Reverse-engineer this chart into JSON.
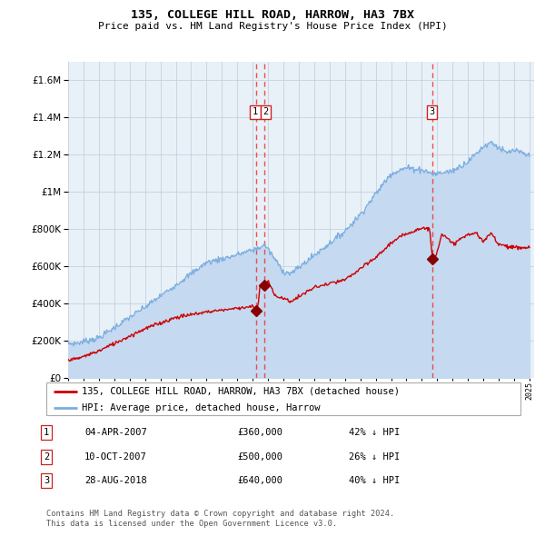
{
  "title1": "135, COLLEGE HILL ROAD, HARROW, HA3 7BX",
  "title2": "Price paid vs. HM Land Registry's House Price Index (HPI)",
  "legend_line1": "135, COLLEGE HILL ROAD, HARROW, HA3 7BX (detached house)",
  "legend_line2": "HPI: Average price, detached house, Harrow",
  "table": [
    {
      "num": "1",
      "date": "04-APR-2007",
      "price": "£360,000",
      "hpi": "42% ↓ HPI"
    },
    {
      "num": "2",
      "date": "10-OCT-2007",
      "price": "£500,000",
      "hpi": "26% ↓ HPI"
    },
    {
      "num": "3",
      "date": "28-AUG-2018",
      "price": "£640,000",
      "hpi": "40% ↓ HPI"
    }
  ],
  "footnote1": "Contains HM Land Registry data © Crown copyright and database right 2024.",
  "footnote2": "This data is licensed under the Open Government Licence v3.0.",
  "hpi_color": "#7aade0",
  "hpi_fill_color": "#c5d9f0",
  "price_color": "#cc0000",
  "marker_color": "#880000",
  "vline_color": "#ee3333",
  "plot_bg": "#e8f0f8",
  "grid_color": "#c0ccd8",
  "ylim_max": 1700000,
  "ylim_min": 0,
  "sale1_year": 2007.25,
  "sale2_year": 2007.77,
  "sale3_year": 2018.67,
  "sale1_price": 360000,
  "sale2_price": 500000,
  "sale3_price": 640000
}
